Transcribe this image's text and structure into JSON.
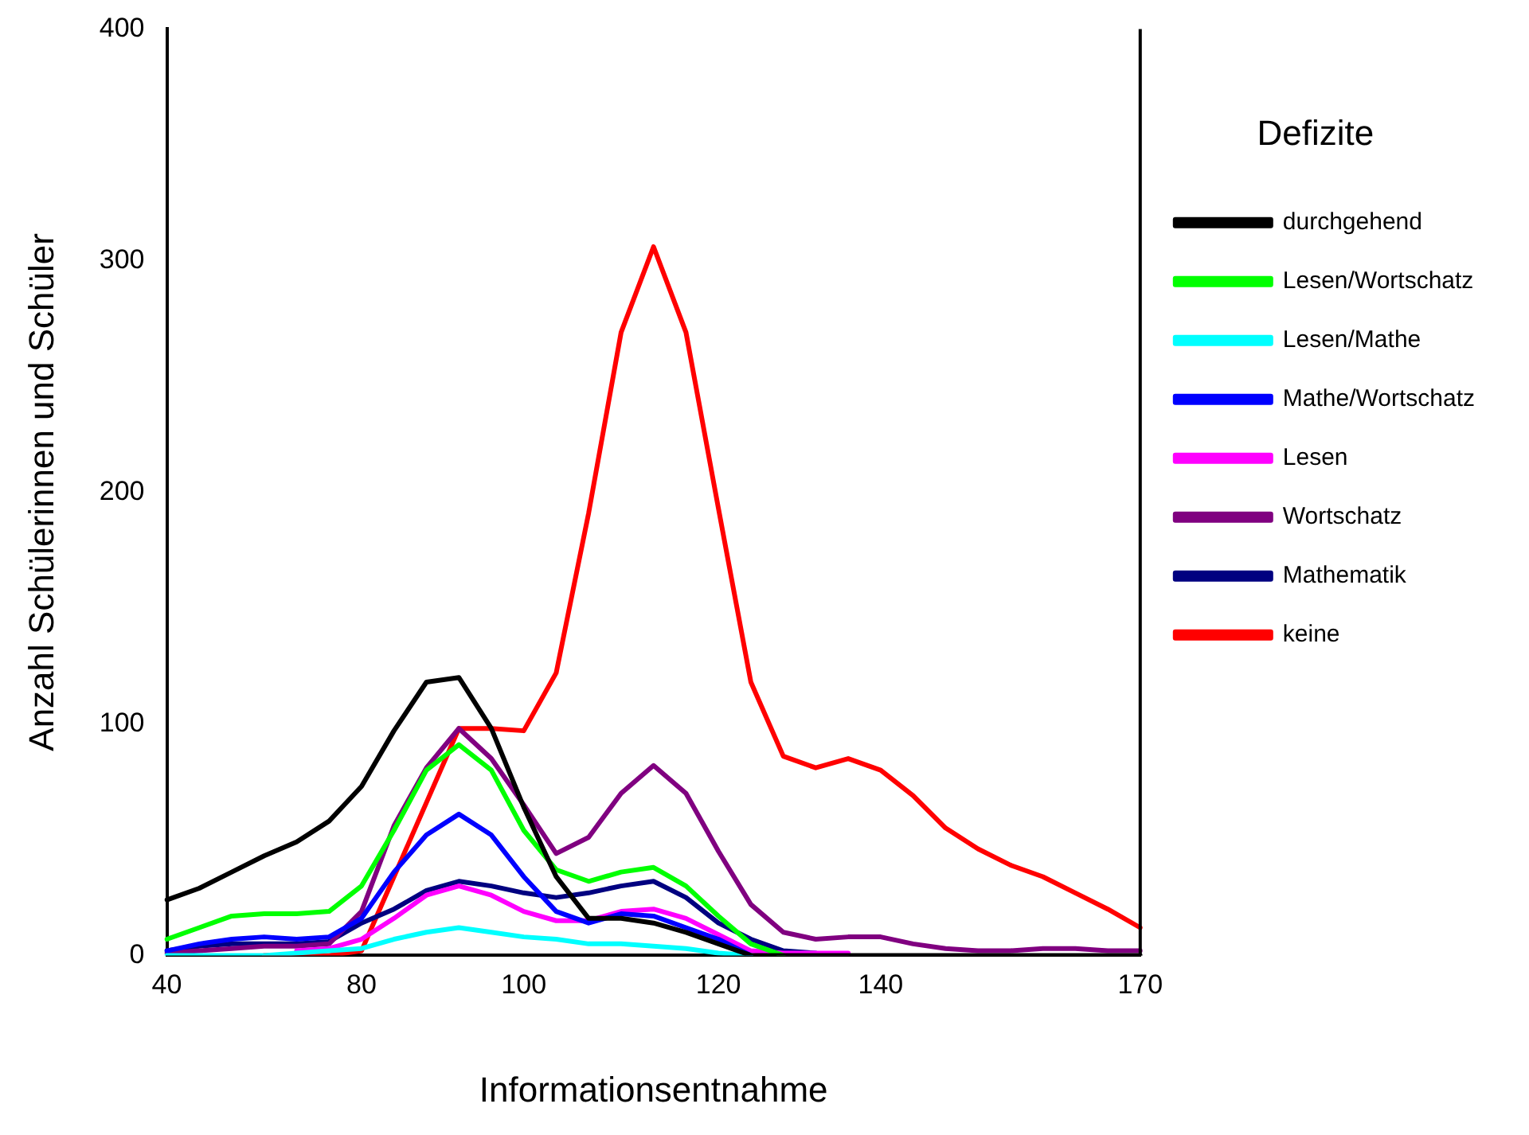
{
  "chart_data": {
    "type": "line",
    "xlabel": "Informationsentnahme",
    "ylabel": "Anzahl Schülerinnen und Schüler",
    "legend_title": "Defizite",
    "legend": "right",
    "grid": false,
    "marker": "none",
    "line_style": "solid",
    "categories": [
      "40",
      null,
      null,
      null,
      null,
      null,
      "80",
      null,
      null,
      null,
      null,
      "100",
      null,
      null,
      null,
      null,
      null,
      "120",
      null,
      null,
      null,
      null,
      "140",
      null,
      null,
      null,
      null,
      null,
      null,
      null,
      "170"
    ],
    "ylim": [
      0,
      400
    ],
    "yticks": [
      0,
      100,
      200,
      300,
      400
    ],
    "series": [
      {
        "name": "durchgehend",
        "color": "#000000",
        "values": [
          24,
          29,
          36,
          43,
          49,
          58,
          73,
          97,
          118,
          120,
          98,
          64,
          34,
          16,
          16,
          14,
          10,
          5,
          0,
          0,
          0,
          0,
          0,
          0,
          0,
          0,
          0,
          0,
          0,
          0,
          0
        ]
      },
      {
        "name": "Lesen/Wortschatz",
        "color": "#00ff00",
        "values": [
          7,
          12,
          17,
          18,
          18,
          19,
          30,
          54,
          80,
          91,
          80,
          54,
          37,
          32,
          36,
          38,
          30,
          17,
          5,
          0,
          null,
          null,
          null,
          null,
          null,
          null,
          null,
          null,
          null,
          null,
          null
        ]
      },
      {
        "name": "Lesen/Mathe",
        "color": "#00ffff",
        "values": [
          0,
          0,
          0,
          0,
          1,
          2,
          3,
          7,
          10,
          12,
          10,
          8,
          7,
          5,
          5,
          4,
          3,
          1,
          0,
          null,
          null,
          null,
          null,
          null,
          null,
          null,
          null,
          null,
          null,
          null,
          null
        ]
      },
      {
        "name": "Mathe/Wortschatz",
        "color": "#0000ff",
        "values": [
          2,
          5,
          7,
          8,
          7,
          8,
          16,
          36,
          52,
          61,
          52,
          34,
          19,
          14,
          18,
          17,
          12,
          7,
          0,
          null,
          null,
          null,
          null,
          null,
          null,
          null,
          null,
          null,
          null,
          null,
          null
        ]
      },
      {
        "name": "Lesen",
        "color": "#ff00ff",
        "values": [
          null,
          null,
          null,
          null,
          2,
          3,
          7,
          16,
          26,
          30,
          26,
          19,
          15,
          15,
          19,
          20,
          16,
          9,
          2,
          1,
          1,
          1,
          null,
          null,
          null,
          null,
          null,
          null,
          null,
          null,
          null
        ]
      },
      {
        "name": "Wortschatz",
        "color": "#800080",
        "values": [
          1,
          2,
          3,
          4,
          4,
          5,
          19,
          56,
          81,
          98,
          85,
          65,
          44,
          51,
          70,
          82,
          70,
          45,
          22,
          10,
          7,
          8,
          8,
          5,
          3,
          2,
          2,
          3,
          3,
          2,
          2
        ]
      },
      {
        "name": "Mathematik",
        "color": "#000080",
        "values": [
          2,
          4,
          5,
          5,
          5,
          6,
          14,
          20,
          28,
          32,
          30,
          27,
          25,
          27,
          30,
          32,
          25,
          14,
          7,
          2,
          1,
          null,
          null,
          null,
          null,
          null,
          null,
          null,
          null,
          null,
          null
        ]
      },
      {
        "name": "keine",
        "color": "#ff0000",
        "values": [
          null,
          null,
          null,
          0,
          0,
          0,
          2,
          34,
          66,
          98,
          98,
          97,
          122,
          191,
          269,
          306,
          269,
          193,
          118,
          86,
          81,
          85,
          80,
          69,
          55,
          46,
          39,
          34,
          27,
          20,
          12
        ]
      }
    ]
  }
}
